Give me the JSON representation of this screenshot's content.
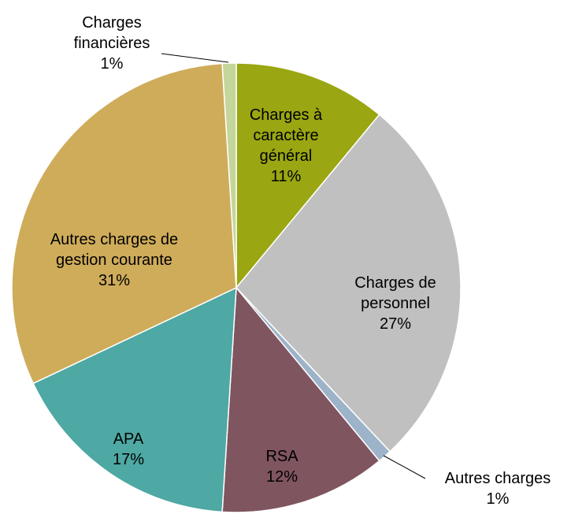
{
  "chart_data": {
    "type": "pie",
    "categories": [
      "Charges à caractère général",
      "Charges de personnel",
      "Autres charges",
      "RSA",
      "APA",
      "Autres charges de gestion courante",
      "Charges financières"
    ],
    "values": [
      11,
      27,
      1,
      12,
      17,
      31,
      1
    ],
    "value_labels": [
      "11%",
      "27%",
      "1%",
      "12%",
      "17%",
      "31%",
      "1%"
    ],
    "colors": [
      "#9aa612",
      "#c0c0c0",
      "#9db3c9",
      "#7f5560",
      "#4ea8a4",
      "#cfac5a",
      "#c4d69a"
    ]
  }
}
